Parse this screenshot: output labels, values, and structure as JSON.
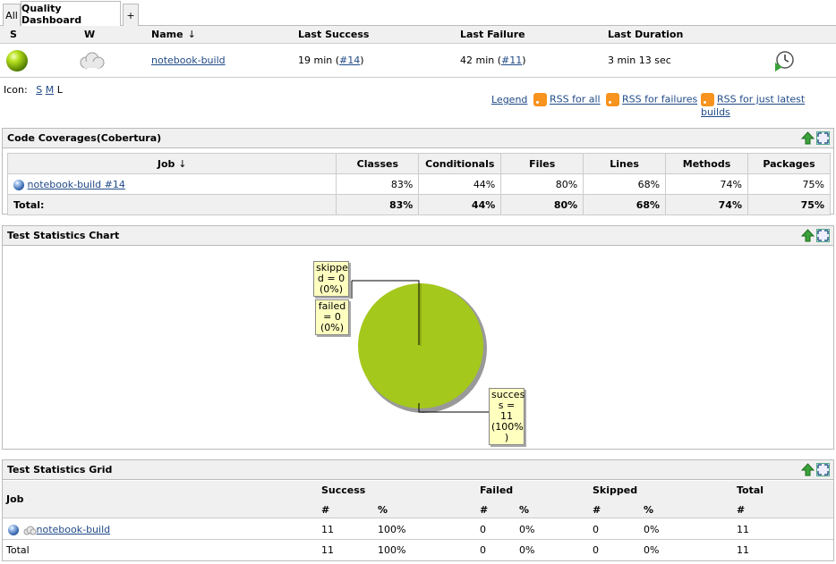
{
  "tabs": [
    {
      "label": "All",
      "active": false
    },
    {
      "label": "Quality Dashboard",
      "active": true
    },
    {
      "label": "+",
      "active": false
    }
  ],
  "job_table": {
    "headers": {
      "status": "S",
      "weather": "W",
      "name": "Name",
      "name_sort": "↓",
      "last_success": "Last Success",
      "last_failure": "Last Failure",
      "last_duration": "Last Duration"
    },
    "rows": [
      {
        "name": "notebook-build",
        "last_success_time": "19 min (",
        "last_success_build": "#14",
        "last_failure_time": "42 min (",
        "last_failure_build": "#11",
        "close_paren": ")",
        "last_duration": "3 min 13 sec"
      }
    ]
  },
  "icon_size": {
    "label": "Icon:",
    "options": [
      "S",
      "M",
      "L"
    ]
  },
  "rss_links": {
    "legend": "Legend",
    "all": "RSS for all",
    "failures": "RSS for failures",
    "latest": "RSS for just latest builds"
  },
  "coverage_panel": {
    "title": "Code Coverages(Cobertura)",
    "headers": [
      "Job",
      "Classes",
      "Conditionals",
      "Files",
      "Lines",
      "Methods",
      "Packages"
    ],
    "job_sort": "↓",
    "rows": [
      {
        "job": "notebook-build #14",
        "values": [
          "83%",
          "44%",
          "80%",
          "68%",
          "74%",
          "75%"
        ]
      }
    ],
    "total": {
      "label": "Total:",
      "values": [
        "83%",
        "44%",
        "80%",
        "68%",
        "74%",
        "75%"
      ]
    }
  },
  "chart_panel": {
    "title": "Test Statistics Chart"
  },
  "chart_data": {
    "type": "pie",
    "slices": [
      {
        "label": "skipped",
        "value": 0,
        "percent": "0%",
        "color": "#a4c81c"
      },
      {
        "label": "failed",
        "value": 0,
        "percent": "0%",
        "color": "#a4c81c"
      },
      {
        "label": "success",
        "value": 11,
        "percent": "100%",
        "color": "#a4c81c"
      }
    ],
    "callouts": {
      "skipped": [
        "skippe",
        "d = 0",
        "(0%)"
      ],
      "failed": [
        "failed",
        "= 0",
        "(0%)"
      ],
      "success": [
        "succes",
        "s = 11",
        "(100%",
        ")"
      ]
    }
  },
  "grid_panel": {
    "title": "Test Statistics Grid",
    "headers": {
      "job": "Job",
      "success": "Success",
      "failed": "Failed",
      "skipped": "Skipped",
      "total": "Total",
      "count": "#",
      "pct": "%"
    },
    "rows": [
      {
        "job": "notebook-build",
        "success": "11",
        "success_pct": "100%",
        "failed": "0",
        "failed_pct": "0%",
        "skipped": "0",
        "skipped_pct": "0%",
        "total": "11"
      }
    ],
    "total": {
      "job": "Total",
      "success": "11",
      "success_pct": "100%",
      "failed": "0",
      "failed_pct": "0%",
      "skipped": "0",
      "skipped_pct": "0%",
      "total": "11"
    }
  }
}
